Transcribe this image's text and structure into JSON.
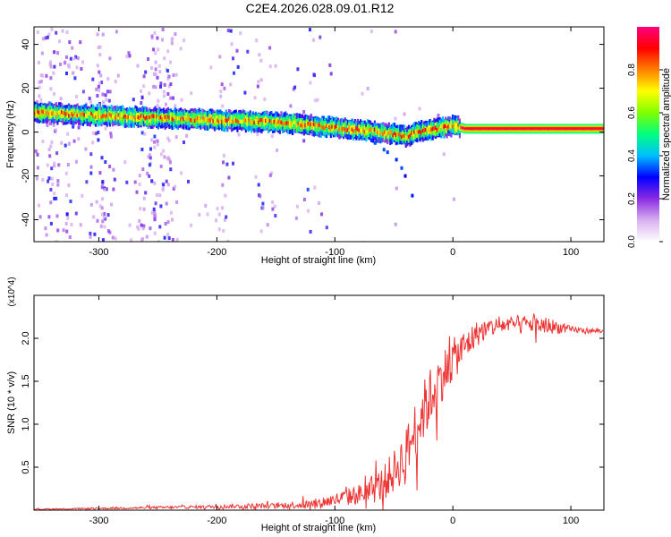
{
  "title": "C2E4.2026.028.09.01.R12",
  "chart_data": [
    {
      "type": "heatmap",
      "xlabel": "Height of straight line (km)",
      "ylabel": "Frequency (Hz)",
      "xlim": [
        -355,
        128
      ],
      "ylim": [
        -50,
        48
      ],
      "xticks": [
        -300,
        -200,
        -100,
        0,
        100
      ],
      "yticks": [
        -40,
        -20,
        0,
        20,
        40
      ],
      "colorbar": {
        "label": "Normalized spectral amplitude",
        "range": [
          0,
          1
        ],
        "ticks": [
          0.0,
          0.2,
          0.4,
          0.6,
          0.8
        ],
        "tick_labels": [
          "0.0",
          "0.2",
          "0.4",
          "0.6",
          "0.8"
        ],
        "colors": [
          "#ffffff",
          "#d8b0f0",
          "#8a2be2",
          "#0000ff",
          "#00bfff",
          "#00ff80",
          "#80ff00",
          "#ffff00",
          "#ff8000",
          "#ff0000",
          "#ff0080"
        ]
      },
      "ridge": {
        "x": [
          -355,
          -300,
          -250,
          -200,
          -150,
          -100,
          -70,
          -50,
          -40,
          -30,
          -20,
          -10,
          0,
          10,
          128
        ],
        "y": [
          9,
          7.5,
          6.5,
          5.5,
          4.5,
          2,
          0.5,
          -1,
          -2,
          0,
          1,
          2,
          3,
          1.5,
          1.5
        ]
      },
      "branch": {
        "x": [
          -70,
          -60,
          -50,
          -45,
          -40,
          -35,
          -30
        ],
        "y": [
          -4,
          -8,
          -12,
          -16,
          -22,
          -30,
          -40
        ]
      },
      "colors": {
        "grid": "#000000"
      }
    },
    {
      "type": "line",
      "xlabel": "Height of straight line (km)",
      "ylabel": "SNR (10 * v/v)",
      "y_multiplier": "(x10^4)",
      "xlim": [
        -355,
        128
      ],
      "ylim": [
        0,
        2.5
      ],
      "xticks": [
        -300,
        -200,
        -100,
        0,
        100
      ],
      "yticks": [
        0.5,
        1.0,
        1.5,
        2.0
      ],
      "ytick_labels": [
        "0.5",
        "1.0",
        "1.5",
        "2.0"
      ],
      "series": [
        {
          "x": [
            -355,
            -300,
            -250,
            -200,
            -170,
            -150,
            -120,
            -100,
            -80,
            -70,
            -60,
            -50,
            -40,
            -30,
            -20,
            -10,
            0,
            10,
            20,
            30,
            40,
            60,
            80,
            100,
            128
          ],
          "y": [
            0.01,
            0.02,
            0.03,
            0.04,
            0.05,
            0.05,
            0.07,
            0.12,
            0.18,
            0.22,
            0.3,
            0.45,
            0.65,
            1.0,
            1.3,
            1.55,
            1.75,
            1.9,
            2.05,
            2.12,
            2.15,
            2.17,
            2.15,
            2.1,
            2.08
          ],
          "noise": [
            0.005,
            0.01,
            0.015,
            0.02,
            0.03,
            0.03,
            0.05,
            0.08,
            0.12,
            0.15,
            0.2,
            0.25,
            0.3,
            0.35,
            0.35,
            0.3,
            0.25,
            0.2,
            0.15,
            0.12,
            0.1,
            0.1,
            0.1,
            0.04,
            0.02
          ],
          "color": "#ee3333"
        }
      ]
    }
  ]
}
